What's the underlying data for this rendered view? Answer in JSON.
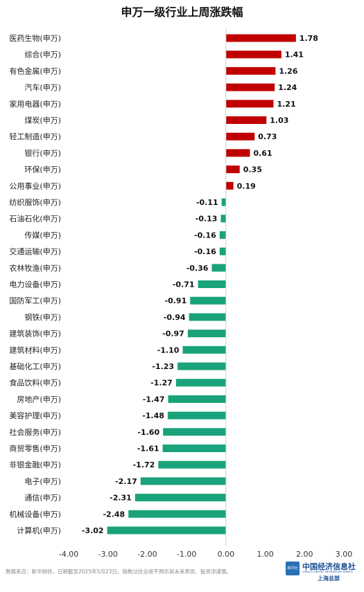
{
  "colors": {
    "positive": "#c00000",
    "negative": "#1aa37a",
    "axis": "#999999",
    "grid": "#d0d0d0"
  },
  "chart_data": {
    "type": "bar",
    "orientation": "horizontal",
    "title": "申万一级行业上周涨跌幅",
    "categories": [
      "医药生物(申万)",
      "综合(申万)",
      "有色金属(申万)",
      "汽车(申万)",
      "家用电器(申万)",
      "煤炭(申万)",
      "轻工制造(申万)",
      "银行(申万)",
      "环保(申万)",
      "公用事业(申万)",
      "纺织服饰(申万)",
      "石油石化(申万)",
      "传媒(申万)",
      "交通运输(申万)",
      "农林牧渔(申万)",
      "电力设备(申万)",
      "国防军工(申万)",
      "钢铁(申万)",
      "建筑装饰(申万)",
      "建筑材料(申万)",
      "基础化工(申万)",
      "食品饮料(申万)",
      "房地产(申万)",
      "美容护理(申万)",
      "社会服务(申万)",
      "商贸零售(申万)",
      "非银金融(申万)",
      "电子(申万)",
      "通信(申万)",
      "机械设备(申万)",
      "计算机(申万)"
    ],
    "values": [
      1.78,
      1.41,
      1.26,
      1.24,
      1.21,
      1.03,
      0.73,
      0.61,
      0.35,
      0.19,
      -0.11,
      -0.13,
      -0.16,
      -0.16,
      -0.36,
      -0.71,
      -0.91,
      -0.94,
      -0.97,
      -1.1,
      -1.23,
      -1.27,
      -1.47,
      -1.48,
      -1.6,
      -1.61,
      -1.72,
      -2.17,
      -2.31,
      -2.48,
      -3.02
    ],
    "value_labels": [
      "1.78",
      "1.41",
      "1.26",
      "1.24",
      "1.21",
      "1.03",
      "0.73",
      "0.61",
      "0.35",
      "0.19",
      "-0.11",
      "-0.13",
      "-0.16",
      "-0.16",
      "-0.36",
      "-0.71",
      "-0.91",
      "-0.94",
      "-0.97",
      "-1.10",
      "-1.23",
      "-1.27",
      "-1.47",
      "-1.48",
      "-1.60",
      "-1.61",
      "-1.72",
      "-2.17",
      "-2.31",
      "-2.48",
      "-3.02"
    ],
    "xlim": [
      -4,
      3
    ],
    "xticks": [
      -4,
      -3,
      -2,
      -1,
      0,
      1,
      2,
      3
    ],
    "xtick_labels": [
      "-4.00",
      "-3.00",
      "-2.00",
      "-1.00",
      "0.00",
      "1.00",
      "2.00",
      "3.00"
    ],
    "xlabel": "",
    "ylabel": "",
    "grid": false,
    "legend": "none"
  },
  "footer": {
    "source": "数据来自：新华财经，日期截至2025年5月23日。指数过往业绩不预示其未来表现，投资须谨慎。"
  },
  "logo": {
    "badge": "新华社",
    "name": "中国经济信息社",
    "english": "CHINA ECONOMIC INFORMATION SERVICE",
    "sub": "上海总部"
  }
}
